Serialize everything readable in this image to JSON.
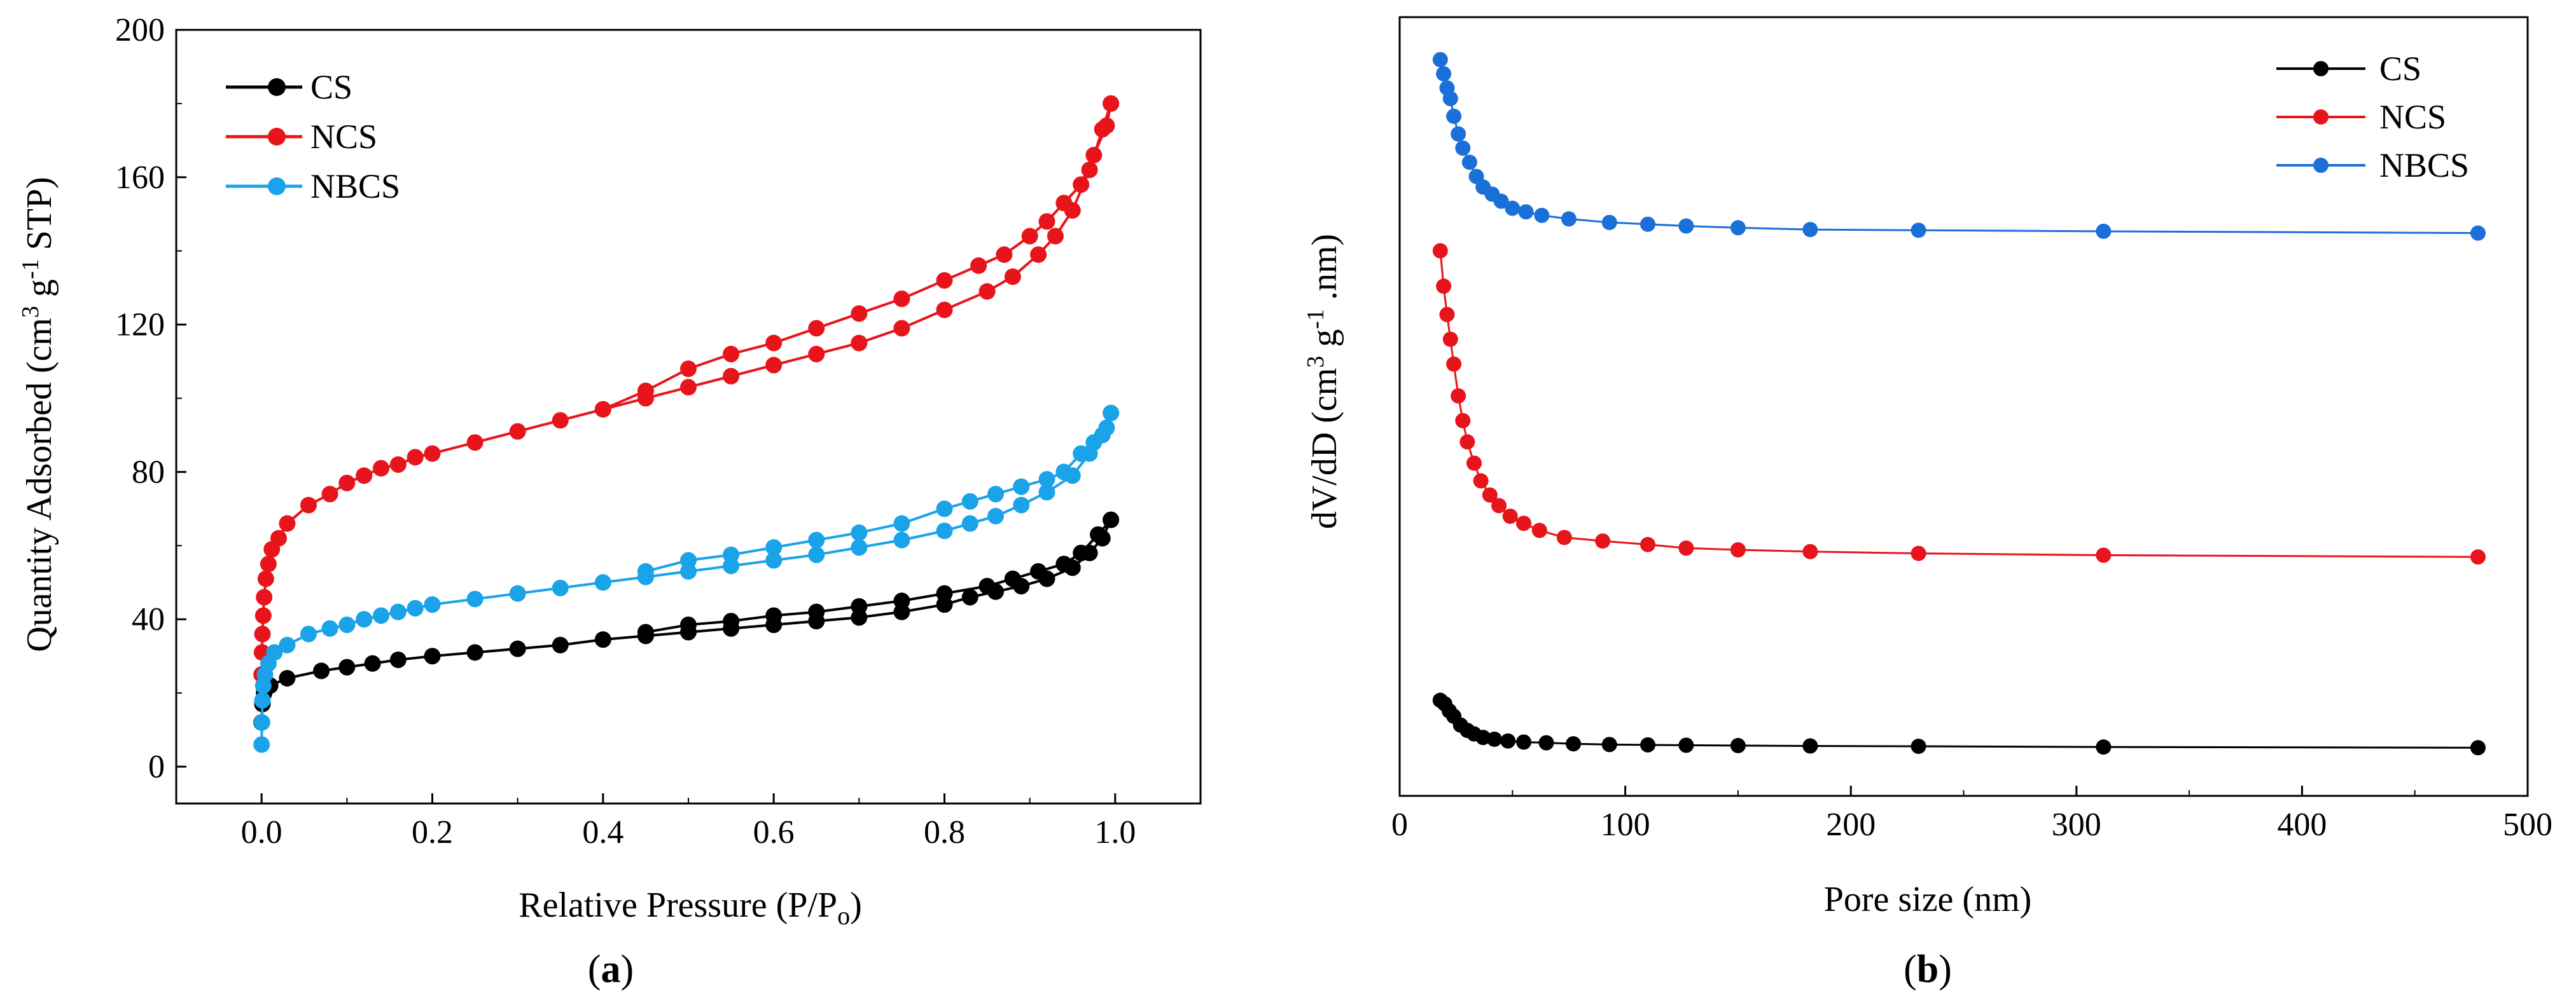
{
  "figure": {
    "panel_a_label": [
      "(",
      "a",
      ")"
    ],
    "panel_b_label": [
      "(",
      "b",
      ")"
    ]
  },
  "chart_data": [
    {
      "type": "line",
      "panel": "a",
      "title": "",
      "xlabel": "Relative Pressure (P/P",
      "xlabel_sub": "o",
      "xlabel_end": ")",
      "ylabel_parts": [
        "Quantity Adsorbed (cm",
        "3",
        " g",
        "-1",
        " STP)"
      ],
      "xlim": [
        -0.1,
        1.1
      ],
      "ylim": [
        -10,
        200
      ],
      "xticks": [
        0.0,
        0.2,
        0.4,
        0.6,
        0.8,
        1.0
      ],
      "xtick_labels": [
        "0.0",
        "0.2",
        "0.4",
        "0.6",
        "0.8",
        "1.0"
      ],
      "yticks": [
        0,
        40,
        80,
        120,
        160,
        200
      ],
      "ytick_labels": [
        "0",
        "40",
        "80",
        "120",
        "160",
        "200"
      ],
      "legend_position": "top-left",
      "series": [
        {
          "name": "CS",
          "color": "#000000",
          "adsorption": [
            [
              0.0,
              12
            ],
            [
              0.001,
              17
            ],
            [
              0.003,
              20
            ],
            [
              0.01,
              22
            ],
            [
              0.03,
              24
            ],
            [
              0.07,
              26
            ],
            [
              0.1,
              27
            ],
            [
              0.13,
              28
            ],
            [
              0.16,
              29
            ],
            [
              0.2,
              30
            ],
            [
              0.25,
              31
            ],
            [
              0.3,
              32
            ],
            [
              0.35,
              33
            ],
            [
              0.4,
              34.5
            ],
            [
              0.45,
              35.5
            ],
            [
              0.5,
              36.5
            ],
            [
              0.55,
              37.5
            ],
            [
              0.6,
              38.5
            ],
            [
              0.65,
              39.5
            ],
            [
              0.7,
              40.5
            ],
            [
              0.75,
              42
            ],
            [
              0.8,
              44
            ],
            [
              0.83,
              46
            ],
            [
              0.86,
              47.5
            ],
            [
              0.89,
              49
            ],
            [
              0.92,
              51
            ],
            [
              0.95,
              54
            ],
            [
              0.97,
              58
            ],
            [
              0.985,
              62
            ],
            [
              0.995,
              67
            ]
          ],
          "desorption": [
            [
              0.995,
              67
            ],
            [
              0.98,
              63
            ],
            [
              0.96,
              58
            ],
            [
              0.94,
              55
            ],
            [
              0.91,
              53
            ],
            [
              0.88,
              51
            ],
            [
              0.85,
              49
            ],
            [
              0.8,
              47
            ],
            [
              0.75,
              45
            ],
            [
              0.7,
              43.5
            ],
            [
              0.65,
              42
            ],
            [
              0.6,
              41
            ],
            [
              0.55,
              39.5
            ],
            [
              0.5,
              38.5
            ],
            [
              0.45,
              36.5
            ]
          ]
        },
        {
          "name": "NCS",
          "color": "#e8141b",
          "adsorption": [
            [
              0.0,
              25
            ],
            [
              0.0005,
              31
            ],
            [
              0.001,
              36
            ],
            [
              0.002,
              41
            ],
            [
              0.003,
              46
            ],
            [
              0.005,
              51
            ],
            [
              0.008,
              55
            ],
            [
              0.012,
              59
            ],
            [
              0.02,
              62
            ],
            [
              0.03,
              66
            ],
            [
              0.055,
              71
            ],
            [
              0.08,
              74
            ],
            [
              0.1,
              77
            ],
            [
              0.12,
              79
            ],
            [
              0.14,
              81
            ],
            [
              0.16,
              82
            ],
            [
              0.18,
              84
            ],
            [
              0.2,
              85
            ],
            [
              0.25,
              88
            ],
            [
              0.3,
              91
            ],
            [
              0.35,
              94
            ],
            [
              0.4,
              97
            ],
            [
              0.45,
              100
            ],
            [
              0.5,
              103
            ],
            [
              0.55,
              106
            ],
            [
              0.6,
              109
            ],
            [
              0.65,
              112
            ],
            [
              0.7,
              115
            ],
            [
              0.75,
              119
            ],
            [
              0.8,
              124
            ],
            [
              0.85,
              129
            ],
            [
              0.88,
              133
            ],
            [
              0.91,
              139
            ],
            [
              0.93,
              144
            ],
            [
              0.95,
              151
            ],
            [
              0.97,
              162
            ],
            [
              0.985,
              173
            ],
            [
              0.995,
              180
            ]
          ],
          "desorption": [
            [
              0.995,
              180
            ],
            [
              0.99,
              174
            ],
            [
              0.975,
              166
            ],
            [
              0.96,
              158
            ],
            [
              0.94,
              153
            ],
            [
              0.92,
              148
            ],
            [
              0.9,
              144
            ],
            [
              0.87,
              139
            ],
            [
              0.84,
              136
            ],
            [
              0.8,
              132
            ],
            [
              0.75,
              127
            ],
            [
              0.7,
              123
            ],
            [
              0.65,
              119
            ],
            [
              0.6,
              115
            ],
            [
              0.55,
              112
            ],
            [
              0.5,
              108
            ],
            [
              0.45,
              102
            ],
            [
              0.4,
              97
            ]
          ]
        },
        {
          "name": "NBCS",
          "color": "#1aa3e8",
          "adsorption": [
            [
              0.0,
              6
            ],
            [
              0.0005,
              12
            ],
            [
              0.001,
              18
            ],
            [
              0.002,
              22
            ],
            [
              0.004,
              25
            ],
            [
              0.008,
              28
            ],
            [
              0.015,
              31
            ],
            [
              0.03,
              33
            ],
            [
              0.055,
              36
            ],
            [
              0.08,
              37.5
            ],
            [
              0.1,
              38.5
            ],
            [
              0.12,
              40
            ],
            [
              0.14,
              41
            ],
            [
              0.16,
              42
            ],
            [
              0.18,
              43
            ],
            [
              0.2,
              44
            ],
            [
              0.25,
              45.5
            ],
            [
              0.3,
              47
            ],
            [
              0.35,
              48.5
            ],
            [
              0.4,
              50
            ],
            [
              0.45,
              51.5
            ],
            [
              0.5,
              53
            ],
            [
              0.55,
              54.5
            ],
            [
              0.6,
              56
            ],
            [
              0.65,
              57.5
            ],
            [
              0.7,
              59.5
            ],
            [
              0.75,
              61.5
            ],
            [
              0.8,
              64
            ],
            [
              0.83,
              66
            ],
            [
              0.86,
              68
            ],
            [
              0.89,
              71
            ],
            [
              0.92,
              74.5
            ],
            [
              0.95,
              79
            ],
            [
              0.97,
              85
            ],
            [
              0.985,
              90
            ],
            [
              0.995,
              96
            ]
          ],
          "desorption": [
            [
              0.995,
              96
            ],
            [
              0.99,
              92
            ],
            [
              0.975,
              88
            ],
            [
              0.96,
              85
            ],
            [
              0.94,
              80
            ],
            [
              0.92,
              78
            ],
            [
              0.89,
              76
            ],
            [
              0.86,
              74
            ],
            [
              0.83,
              72
            ],
            [
              0.8,
              70
            ],
            [
              0.75,
              66
            ],
            [
              0.7,
              63.5
            ],
            [
              0.65,
              61.5
            ],
            [
              0.6,
              59.5
            ],
            [
              0.55,
              57.5
            ],
            [
              0.5,
              56
            ],
            [
              0.45,
              53
            ]
          ]
        }
      ]
    },
    {
      "type": "line",
      "panel": "b",
      "title": "",
      "xlabel": "Pore size (nm)",
      "ylabel_parts": [
        "dV/dD (cm",
        "3",
        " g",
        "-1",
        " .nm)"
      ],
      "xlim": [
        0,
        500
      ],
      "ylim": [
        -14,
        206
      ],
      "y_units": "arbitrary (no y tick labels shown)",
      "xticks": [
        0,
        100,
        200,
        300,
        400,
        500
      ],
      "xtick_labels": [
        "0",
        "100",
        "200",
        "300",
        "400",
        "500"
      ],
      "legend_position": "top-right",
      "series": [
        {
          "name": "CS",
          "color": "#000000",
          "points": [
            [
              18,
              13
            ],
            [
              20,
              12
            ],
            [
              22,
              10
            ],
            [
              24,
              8.5
            ],
            [
              27,
              6
            ],
            [
              30,
              4.5
            ],
            [
              33,
              3.5
            ],
            [
              37,
              2.5
            ],
            [
              42,
              2
            ],
            [
              48,
              1.5
            ],
            [
              55,
              1.2
            ],
            [
              65,
              1
            ],
            [
              77,
              0.7
            ],
            [
              93,
              0.5
            ],
            [
              110,
              0.4
            ],
            [
              127,
              0.3
            ],
            [
              150,
              0.2
            ],
            [
              182,
              0.1
            ],
            [
              230,
              0
            ],
            [
              312,
              -0.2
            ],
            [
              478,
              -0.4
            ]
          ]
        },
        {
          "name": "NCS",
          "color": "#e8141b",
          "points": [
            [
              18,
              140
            ],
            [
              19.5,
              130
            ],
            [
              21,
              122
            ],
            [
              22.5,
              115
            ],
            [
              24,
              108
            ],
            [
              26,
              99
            ],
            [
              28,
              92
            ],
            [
              30,
              86
            ],
            [
              33,
              80
            ],
            [
              36,
              75
            ],
            [
              40,
              71
            ],
            [
              44,
              68
            ],
            [
              49,
              65
            ],
            [
              55,
              63
            ],
            [
              62,
              61
            ],
            [
              73,
              59
            ],
            [
              90,
              58
            ],
            [
              110,
              57
            ],
            [
              127,
              56
            ],
            [
              150,
              55.5
            ],
            [
              182,
              55
            ],
            [
              230,
              54.5
            ],
            [
              312,
              54
            ],
            [
              478,
              53.5
            ]
          ]
        },
        {
          "name": "NBCS",
          "color": "#1a6fd9",
          "points": [
            [
              18,
              194
            ],
            [
              19.5,
              190
            ],
            [
              21,
              186
            ],
            [
              22.5,
              183
            ],
            [
              24,
              178
            ],
            [
              26,
              173
            ],
            [
              28,
              169
            ],
            [
              31,
              165
            ],
            [
              34,
              161
            ],
            [
              37,
              158
            ],
            [
              41,
              156
            ],
            [
              45,
              154
            ],
            [
              50,
              152
            ],
            [
              56,
              151
            ],
            [
              63,
              150
            ],
            [
              75,
              149
            ],
            [
              93,
              148
            ],
            [
              110,
              147.5
            ],
            [
              127,
              147
            ],
            [
              150,
              146.5
            ],
            [
              182,
              146
            ],
            [
              230,
              145.8
            ],
            [
              312,
              145.5
            ],
            [
              478,
              145
            ]
          ]
        }
      ]
    }
  ]
}
